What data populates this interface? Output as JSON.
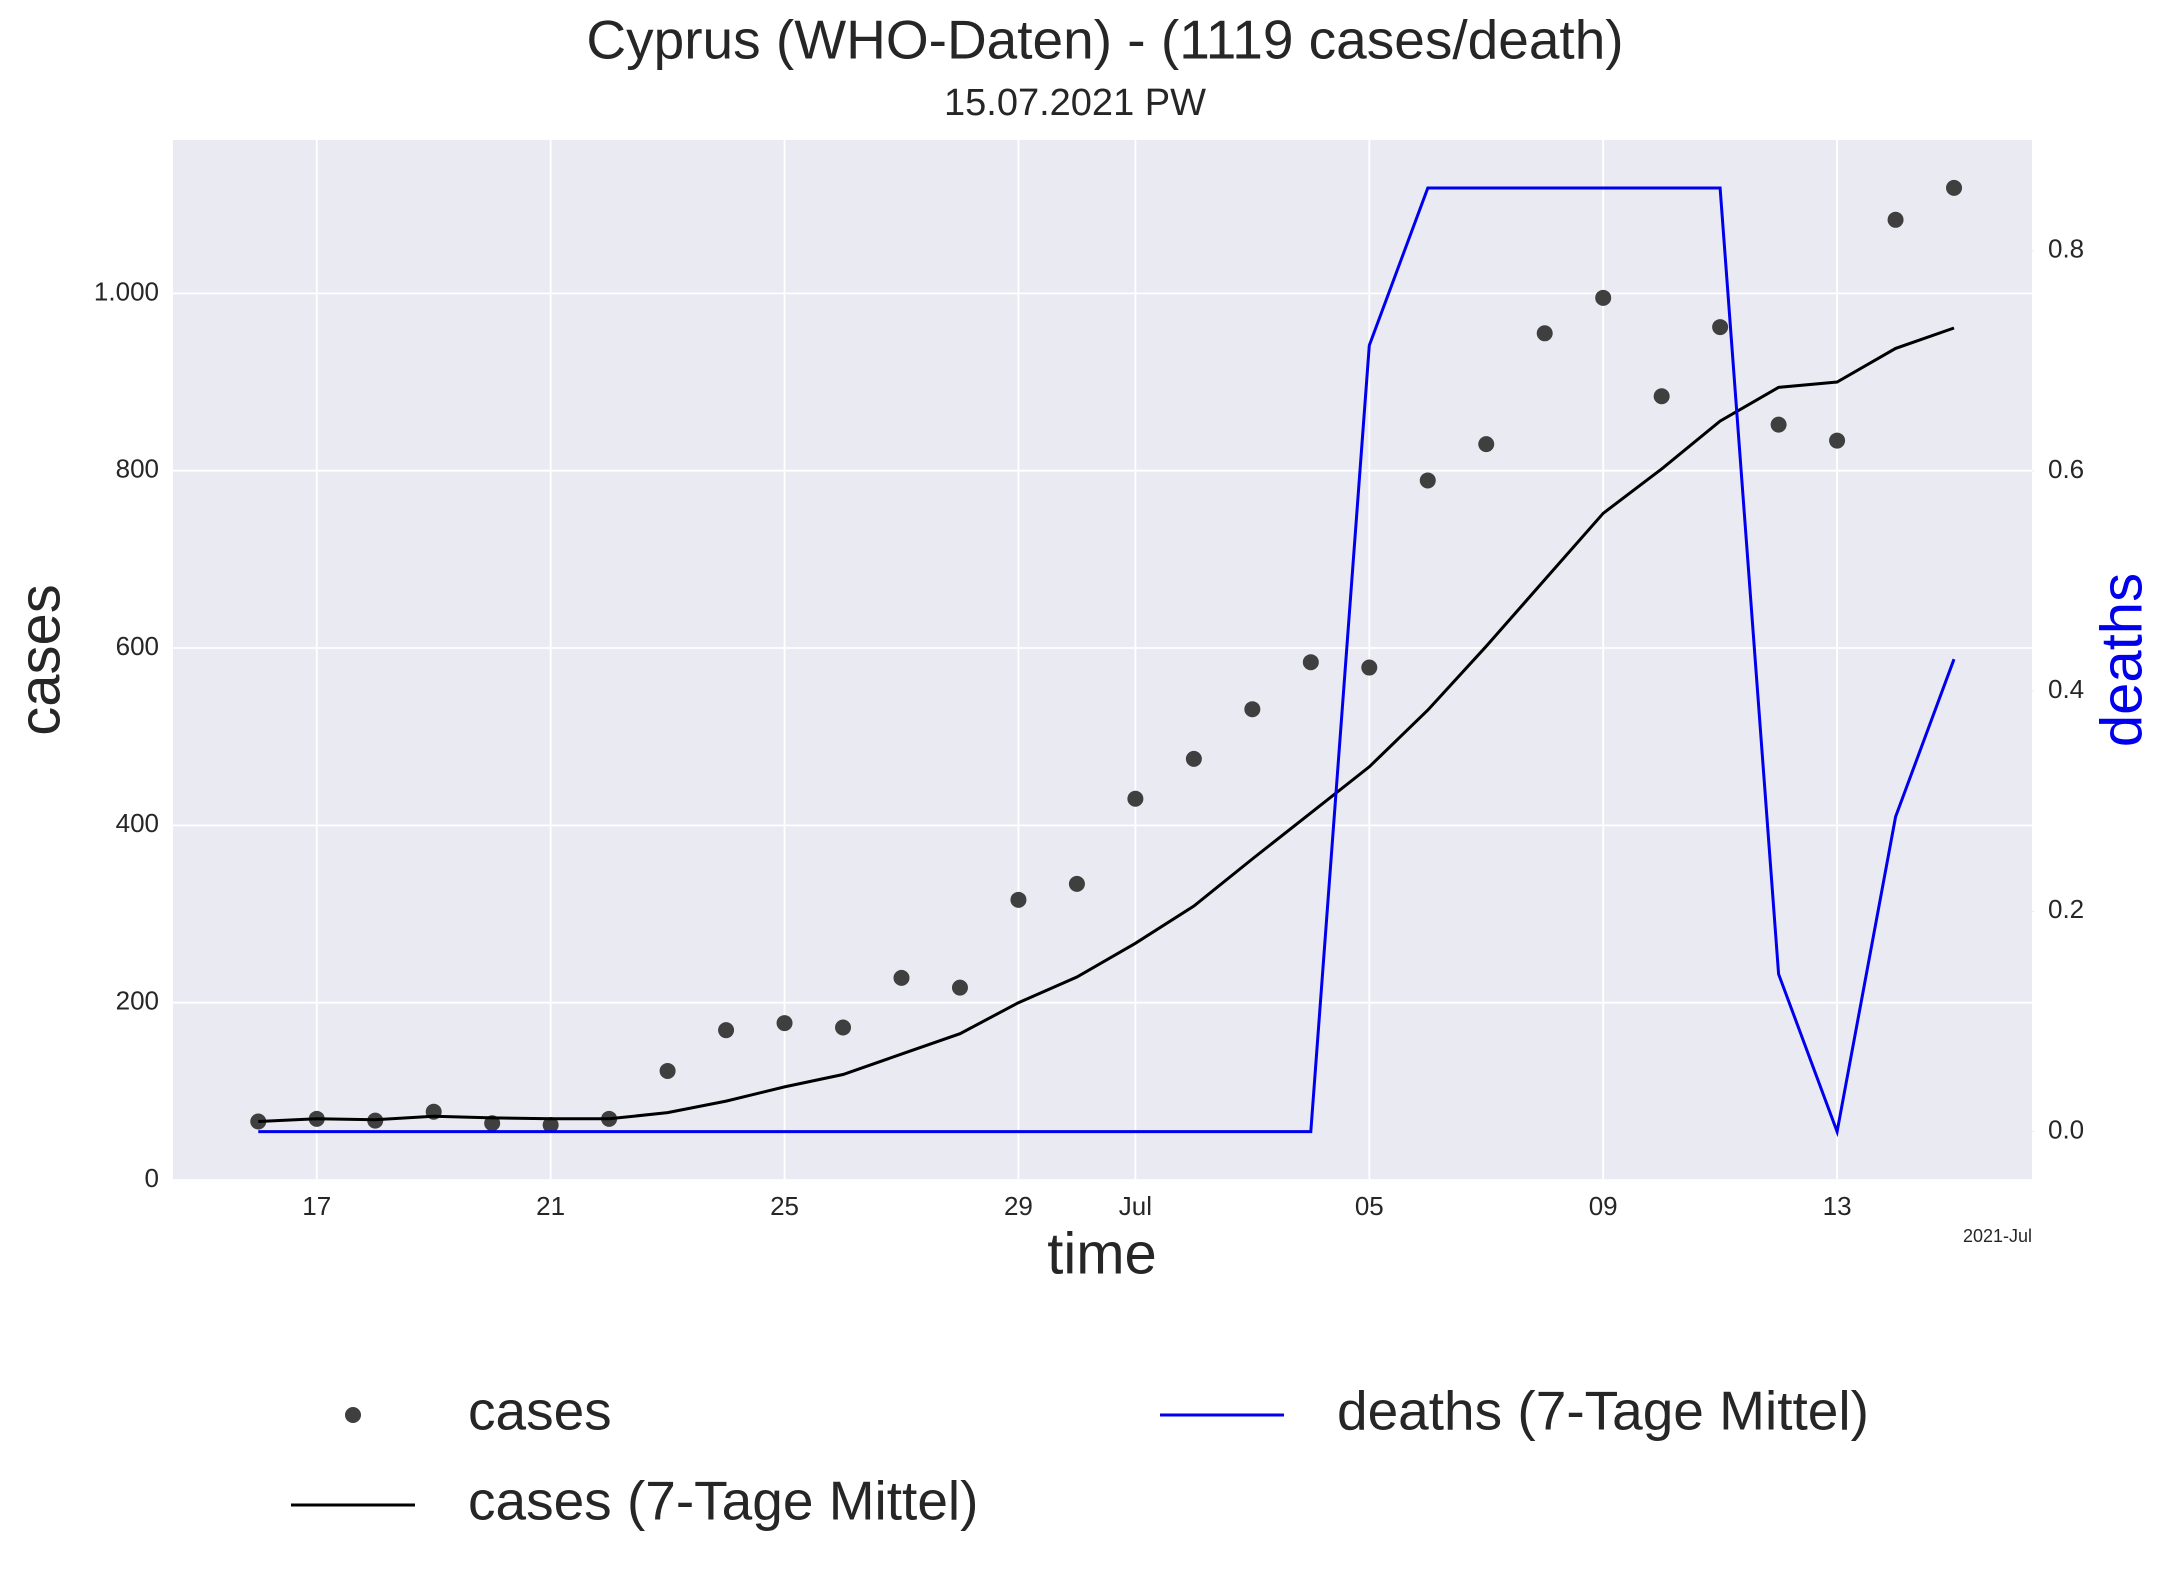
{
  "chart_data": {
    "type": "line",
    "title": "Cyprus (WHO-Daten) - (1119 cases/death)",
    "subtitle": "15.07.2021 PW",
    "x_label": "time",
    "y_label": "cases",
    "y2_label": "deaths",
    "x_offset_label": "2021-Jul",
    "x": [
      "2021-06-16",
      "2021-06-17",
      "2021-06-18",
      "2021-06-19",
      "2021-06-20",
      "2021-06-21",
      "2021-06-22",
      "2021-06-23",
      "2021-06-24",
      "2021-06-25",
      "2021-06-26",
      "2021-06-27",
      "2021-06-28",
      "2021-06-29",
      "2021-06-30",
      "2021-07-01",
      "2021-07-02",
      "2021-07-03",
      "2021-07-04",
      "2021-07-05",
      "2021-07-06",
      "2021-07-07",
      "2021-07-08",
      "2021-07-09",
      "2021-07-10",
      "2021-07-11",
      "2021-07-12",
      "2021-07-13",
      "2021-07-14",
      "2021-07-15"
    ],
    "series": [
      {
        "name": "cases",
        "type": "scatter",
        "color": "#3f3f3f",
        "axis": "y",
        "values": [
          66,
          69,
          67,
          77,
          64,
          62,
          69,
          123,
          169,
          177,
          172,
          228,
          217,
          316,
          334,
          430,
          475,
          531,
          584,
          578,
          789,
          830,
          955,
          995,
          884,
          962,
          852,
          834,
          1083,
          1119
        ]
      },
      {
        "name": "cases (7-Tage Mittel)",
        "type": "line",
        "color": "#000000",
        "axis": "y",
        "values": [
          66,
          69,
          68,
          72,
          70,
          69,
          69,
          76,
          89,
          105,
          119,
          142,
          165,
          200,
          229,
          267,
          309,
          362,
          414,
          466,
          530,
          602,
          677,
          752,
          802,
          856,
          894,
          900,
          938,
          961
        ]
      },
      {
        "name": "deaths (7-Tage Mittel)",
        "type": "line",
        "color": "#0000ee",
        "axis": "y2",
        "values": [
          0,
          0,
          0,
          0,
          0,
          0,
          0,
          0,
          0,
          0,
          0,
          0,
          0,
          0,
          0,
          0,
          0,
          0,
          0,
          0.714,
          0.857,
          0.857,
          0.857,
          0.857,
          0.857,
          0.857,
          0.143,
          0,
          0.286,
          0.429
        ]
      }
    ],
    "xlim": [
      "2021-06-14T13:00:00",
      "2021-07-16T08:00:00"
    ],
    "xticks": [
      {
        "value": "2021-06-17",
        "label": "17"
      },
      {
        "value": "2021-06-21",
        "label": "21"
      },
      {
        "value": "2021-06-25",
        "label": "25"
      },
      {
        "value": "2021-06-29",
        "label": "29"
      },
      {
        "value": "2021-07-01",
        "label": "Jul"
      },
      {
        "value": "2021-07-05",
        "label": "05"
      },
      {
        "value": "2021-07-09",
        "label": "09"
      },
      {
        "value": "2021-07-13",
        "label": "13"
      }
    ],
    "ylim": [
      0,
      1173
    ],
    "yticks": [
      0,
      200,
      400,
      600,
      800,
      {
        "value": 1000,
        "label": "1.000"
      }
    ],
    "y2lim": [
      -0.044,
      0.9006
    ],
    "y2ticks": [
      {
        "value": 0,
        "label": "0.0"
      },
      0.2,
      0.4,
      0.6,
      0.8
    ],
    "grid": true
  }
}
